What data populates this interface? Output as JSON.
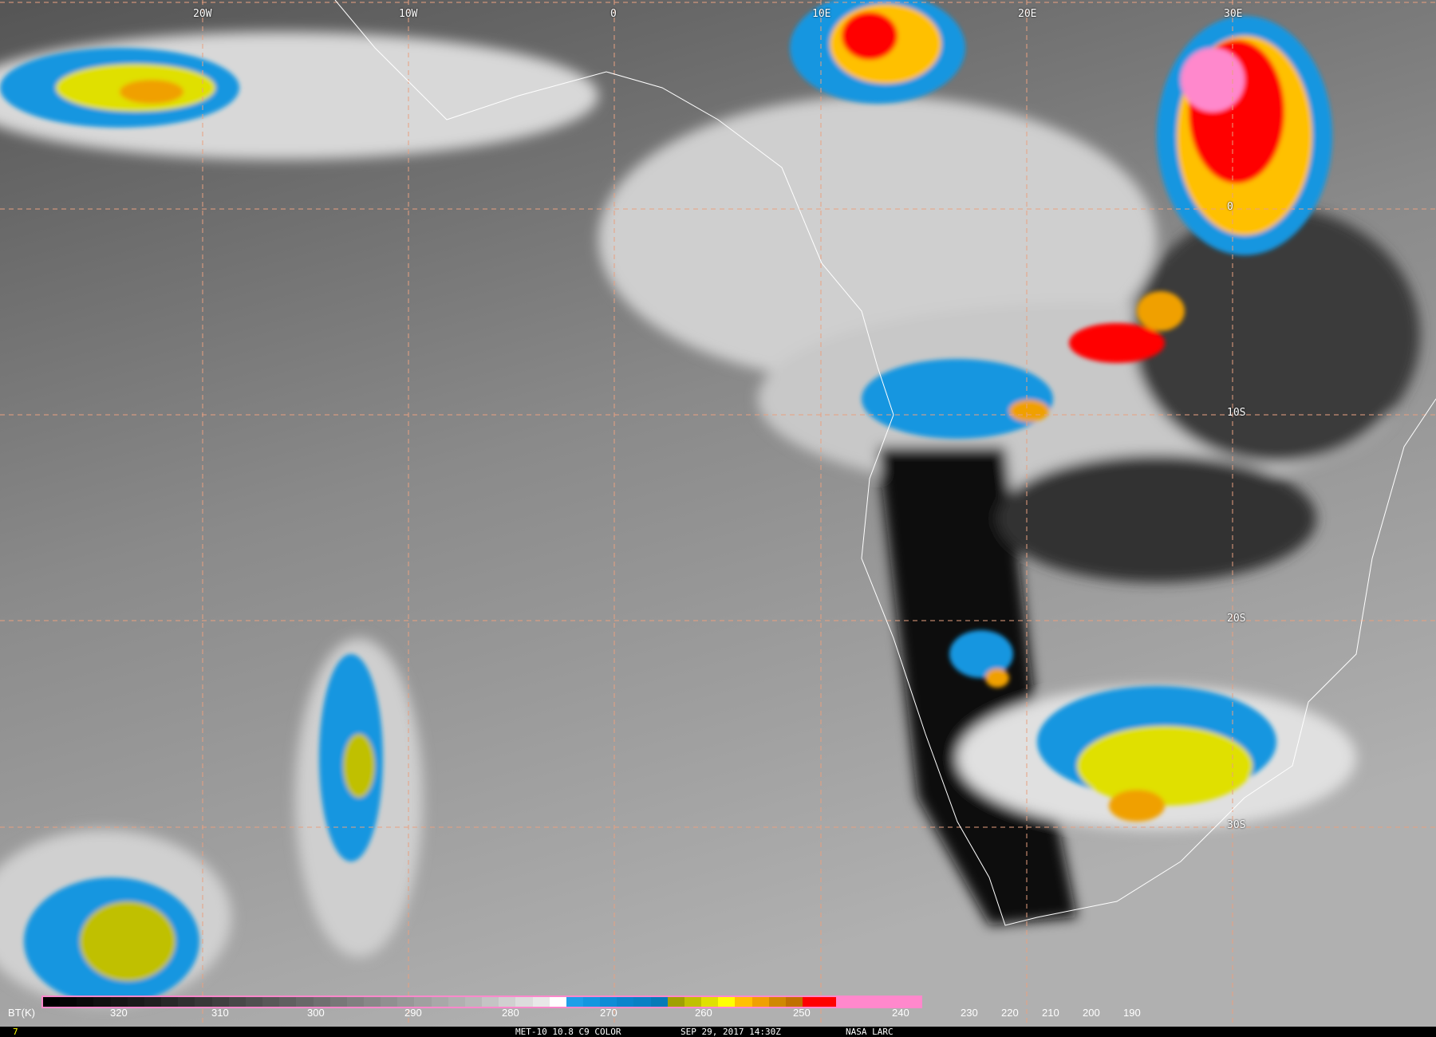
{
  "map": {
    "longitude_labels": [
      "20W",
      "10W",
      "0",
      "10E",
      "20E",
      "30E"
    ],
    "latitude_labels": [
      "0",
      "10S",
      "20S",
      "30S"
    ],
    "grid_color": "#e8a080",
    "coast_color": "#ffffff"
  },
  "colorbar": {
    "unit_label": "BT(K)",
    "tick_labels": [
      "320",
      "310",
      "300",
      "290",
      "280",
      "270",
      "260",
      "250",
      "240",
      "230",
      "220",
      "210",
      "200",
      "190"
    ],
    "colors": [
      "#000000",
      "#050505",
      "#0a0a0a",
      "#101010",
      "#151515",
      "#1a1a1a",
      "#202020",
      "#282828",
      "#303030",
      "#383838",
      "#404040",
      "#484848",
      "#505050",
      "#585858",
      "#606060",
      "#686868",
      "#707070",
      "#787878",
      "#808080",
      "#888888",
      "#909090",
      "#989898",
      "#a0a0a0",
      "#a8a8a8",
      "#b0b0b0",
      "#b8b8b8",
      "#c4c4c4",
      "#d0d0d0",
      "#dcdcdc",
      "#e8e8e8",
      "#ffffff",
      "#1e9fe8",
      "#1496e0",
      "#0e8cd6",
      "#0a84cc",
      "#0880c4",
      "#067ab8",
      "#a0a000",
      "#c0c000",
      "#e0e000",
      "#ffff00",
      "#ffc000",
      "#f0a000",
      "#d08800",
      "#c07000",
      "#ff0000",
      "#ff0000",
      "#ff88cc",
      "#ff88cc",
      "#ff88cc",
      "#ff88cc",
      "#ff88cc"
    ]
  },
  "footer": {
    "frame_number": "7",
    "product": "MET-10 10.8 C9 COLOR",
    "datetime": "SEP 29, 2017 14:30Z",
    "source": "NASA LARC"
  }
}
